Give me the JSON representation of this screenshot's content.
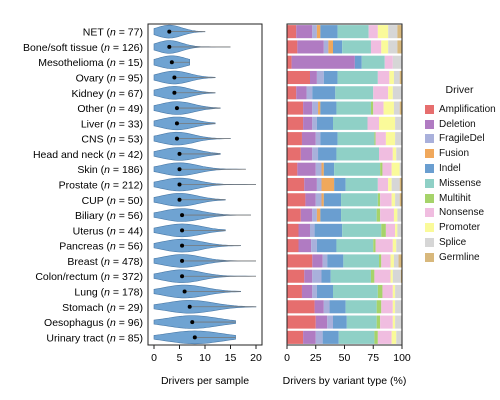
{
  "chart_data": [
    {
      "type": "violin",
      "xlabel": "Drivers per sample",
      "xlim": [
        0,
        20
      ],
      "xticks": [
        "0",
        "5",
        "10",
        "15",
        "20"
      ],
      "fill_color": "#6fa3d2",
      "categories": [
        {
          "label": "NET",
          "n": "77",
          "median": 3,
          "max": 10
        },
        {
          "label": "Bone/soft tissue",
          "n": "126",
          "median": 3,
          "max": 15
        },
        {
          "label": "Mesothelioma",
          "n": "15",
          "median": 3.5,
          "max": 7
        },
        {
          "label": "Ovary",
          "n": "95",
          "median": 4,
          "max": 12
        },
        {
          "label": "Kidney",
          "n": "67",
          "median": 4,
          "max": 12
        },
        {
          "label": "Other",
          "n": "49",
          "median": 4.5,
          "max": 13
        },
        {
          "label": "Liver",
          "n": "33",
          "median": 4.5,
          "max": 12
        },
        {
          "label": "CNS",
          "n": "53",
          "median": 4.5,
          "max": 15
        },
        {
          "label": "Head and neck",
          "n": "42",
          "median": 5,
          "max": 13
        },
        {
          "label": "Skin",
          "n": "186",
          "median": 5,
          "max": 18
        },
        {
          "label": "Prostate",
          "n": "212",
          "median": 5,
          "max": 20
        },
        {
          "label": "CUP",
          "n": "50",
          "median": 5,
          "max": 14
        },
        {
          "label": "Biliary",
          "n": "56",
          "median": 5.5,
          "max": 19
        },
        {
          "label": "Uterus",
          "n": "44",
          "median": 5.5,
          "max": 14
        },
        {
          "label": "Pancreas",
          "n": "56",
          "median": 5.5,
          "max": 17
        },
        {
          "label": "Breast",
          "n": "478",
          "median": 5.5,
          "max": 20
        },
        {
          "label": "Colon/rectum",
          "n": "372",
          "median": 5.5,
          "max": 20
        },
        {
          "label": "Lung",
          "n": "178",
          "median": 6,
          "max": 17
        },
        {
          "label": "Stomach",
          "n": "29",
          "median": 7,
          "max": 20
        },
        {
          "label": "Oesophagus",
          "n": "96",
          "median": 7.5,
          "max": 16
        },
        {
          "label": "Urinary tract",
          "n": "85",
          "median": 8,
          "max": 16
        }
      ]
    },
    {
      "type": "bar",
      "stacked": true,
      "orientation": "horizontal",
      "xlabel": "Drivers by variant type (%)",
      "xlim": [
        0,
        100
      ],
      "xticks": [
        "0",
        "25",
        "50",
        "75",
        "100"
      ],
      "legend_title": "Driver",
      "legend_position": "right",
      "categories": [
        "NET",
        "Bone/soft tissue",
        "Mesothelioma",
        "Ovary",
        "Kidney",
        "Other",
        "Liver",
        "CNS",
        "Head and neck",
        "Skin",
        "Prostate",
        "CUP",
        "Biliary",
        "Uterus",
        "Pancreas",
        "Breast",
        "Colon/rectum",
        "Lung",
        "Stomach",
        "Oesophagus",
        "Urinary tract"
      ],
      "series": [
        {
          "name": "Amplification",
          "color": "#e66e6e",
          "values": [
            8,
            9,
            4,
            20,
            8,
            14,
            14,
            13,
            12,
            9,
            15,
            16,
            12,
            10,
            10,
            22,
            15,
            13,
            24,
            25,
            14
          ]
        },
        {
          "name": "Deletion",
          "color": "#b07bc2",
          "values": [
            14,
            23,
            55,
            6,
            9,
            8,
            8,
            12,
            10,
            16,
            11,
            9,
            10,
            10,
            11,
            9,
            7,
            9,
            8,
            10,
            11
          ]
        },
        {
          "name": "FragileDel",
          "color": "#a9b0db",
          "values": [
            4,
            4,
            0,
            6,
            5,
            5,
            4,
            4,
            5,
            5,
            4,
            5,
            4,
            4,
            5,
            4,
            8,
            4,
            5,
            5,
            6
          ]
        },
        {
          "name": "Fusion",
          "color": "#f0a85c",
          "values": [
            3,
            4,
            0,
            0,
            0,
            2,
            0,
            0,
            0,
            2,
            11,
            2,
            3,
            0,
            0,
            0,
            0,
            0,
            0,
            0,
            0
          ]
        },
        {
          "name": "Indel",
          "color": "#6a9ed0",
          "values": [
            15,
            8,
            6,
            12,
            20,
            14,
            14,
            15,
            16,
            9,
            10,
            15,
            18,
            24,
            17,
            14,
            8,
            14,
            14,
            12,
            14
          ]
        },
        {
          "name": "Missense",
          "color": "#8fd0c6",
          "values": [
            27,
            25,
            20,
            35,
            33,
            30,
            30,
            32,
            37,
            40,
            28,
            32,
            31,
            34,
            32,
            31,
            35,
            39,
            27,
            26,
            31
          ]
        },
        {
          "name": "Multihit",
          "color": "#a6d36a",
          "values": [
            0,
            0,
            0,
            0,
            0,
            2,
            0,
            1,
            0,
            2,
            0,
            2,
            3,
            4,
            2,
            2,
            3,
            4,
            4,
            3,
            3
          ]
        },
        {
          "name": "Nonsense",
          "color": "#f0bde0",
          "values": [
            8,
            9,
            7,
            10,
            13,
            9,
            10,
            9,
            12,
            8,
            9,
            10,
            12,
            8,
            15,
            8,
            14,
            9,
            10,
            11,
            12
          ]
        },
        {
          "name": "Promoter",
          "color": "#fafa9a",
          "values": [
            9,
            6,
            0,
            4,
            4,
            9,
            14,
            8,
            3,
            7,
            3,
            3,
            3,
            2,
            3,
            3,
            2,
            2,
            2,
            2,
            4
          ]
        },
        {
          "name": "Splice",
          "color": "#d6d6d6",
          "values": [
            8,
            8,
            8,
            5,
            8,
            5,
            6,
            6,
            5,
            2,
            7,
            4,
            4,
            4,
            5,
            4,
            7,
            6,
            6,
            6,
            5
          ]
        },
        {
          "name": "Germline",
          "color": "#d8b87c",
          "values": [
            4,
            4,
            0,
            2,
            0,
            2,
            0,
            0,
            0,
            0,
            2,
            2,
            0,
            0,
            0,
            3,
            1,
            0,
            0,
            0,
            0
          ]
        }
      ]
    }
  ]
}
